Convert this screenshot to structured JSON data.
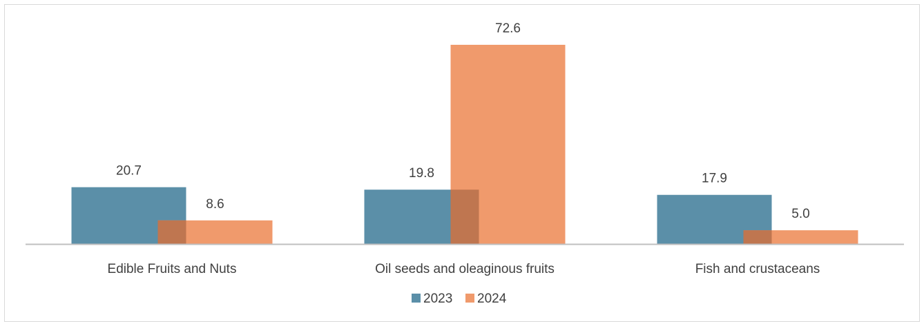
{
  "chart_data": {
    "type": "bar",
    "categories": [
      "Edible Fruits and Nuts",
      "Oil seeds and oleaginous fruits",
      "Fish and crustaceans"
    ],
    "series": [
      {
        "name": "2023",
        "values": [
          20.7,
          19.8,
          17.9
        ],
        "color": "#5b8fa8",
        "labels": [
          "20.7",
          "19.8",
          "17.9"
        ]
      },
      {
        "name": "2024",
        "values": [
          8.6,
          72.6,
          5.0
        ],
        "color": "#f09a6c",
        "labels": [
          "8.6",
          "72.6",
          "5.0"
        ]
      }
    ],
    "overlap_color": "#bf7650",
    "axis_color": "#bfbfbf",
    "ylim": [
      0,
      72.6
    ],
    "grid": false,
    "legend_position": "bottom"
  }
}
